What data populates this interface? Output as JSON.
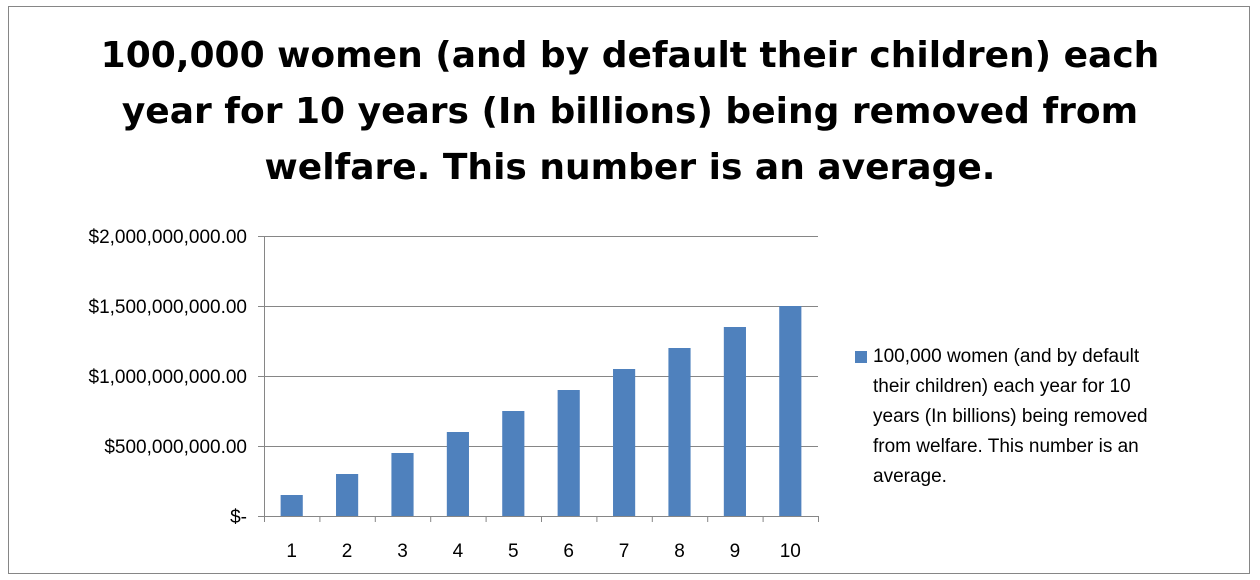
{
  "chart_data": {
    "type": "bar",
    "title": "100,000 women (and by default their children) each year for 10 years (In billions) being removed from welfare. This number is an average.",
    "categories": [
      "1",
      "2",
      "3",
      "4",
      "5",
      "6",
      "7",
      "8",
      "9",
      "10"
    ],
    "series": [
      {
        "name": "100,000 women (and by default their children) each year for 10 years (In billions) being removed from welfare. This number is an average.",
        "values": [
          150000000,
          300000000,
          450000000,
          600000000,
          750000000,
          900000000,
          1050000000,
          1200000000,
          1350000000,
          1500000000
        ],
        "color": "#4f81bd"
      }
    ],
    "ylim": [
      0,
      2000000000
    ],
    "yticks": [
      0,
      500000000,
      1000000000,
      1500000000,
      2000000000
    ],
    "ytick_labels": [
      "$-",
      "$500,000,000.00",
      "$1,000,000,000.00",
      "$1,500,000,000.00",
      "$2,000,000,000.00"
    ],
    "grid": true,
    "legend_position": "right",
    "xlabel": "",
    "ylabel": ""
  },
  "colors": {
    "bar": "#4f81bd",
    "gridline": "#868686",
    "axis": "#868686",
    "border": "#868686"
  }
}
